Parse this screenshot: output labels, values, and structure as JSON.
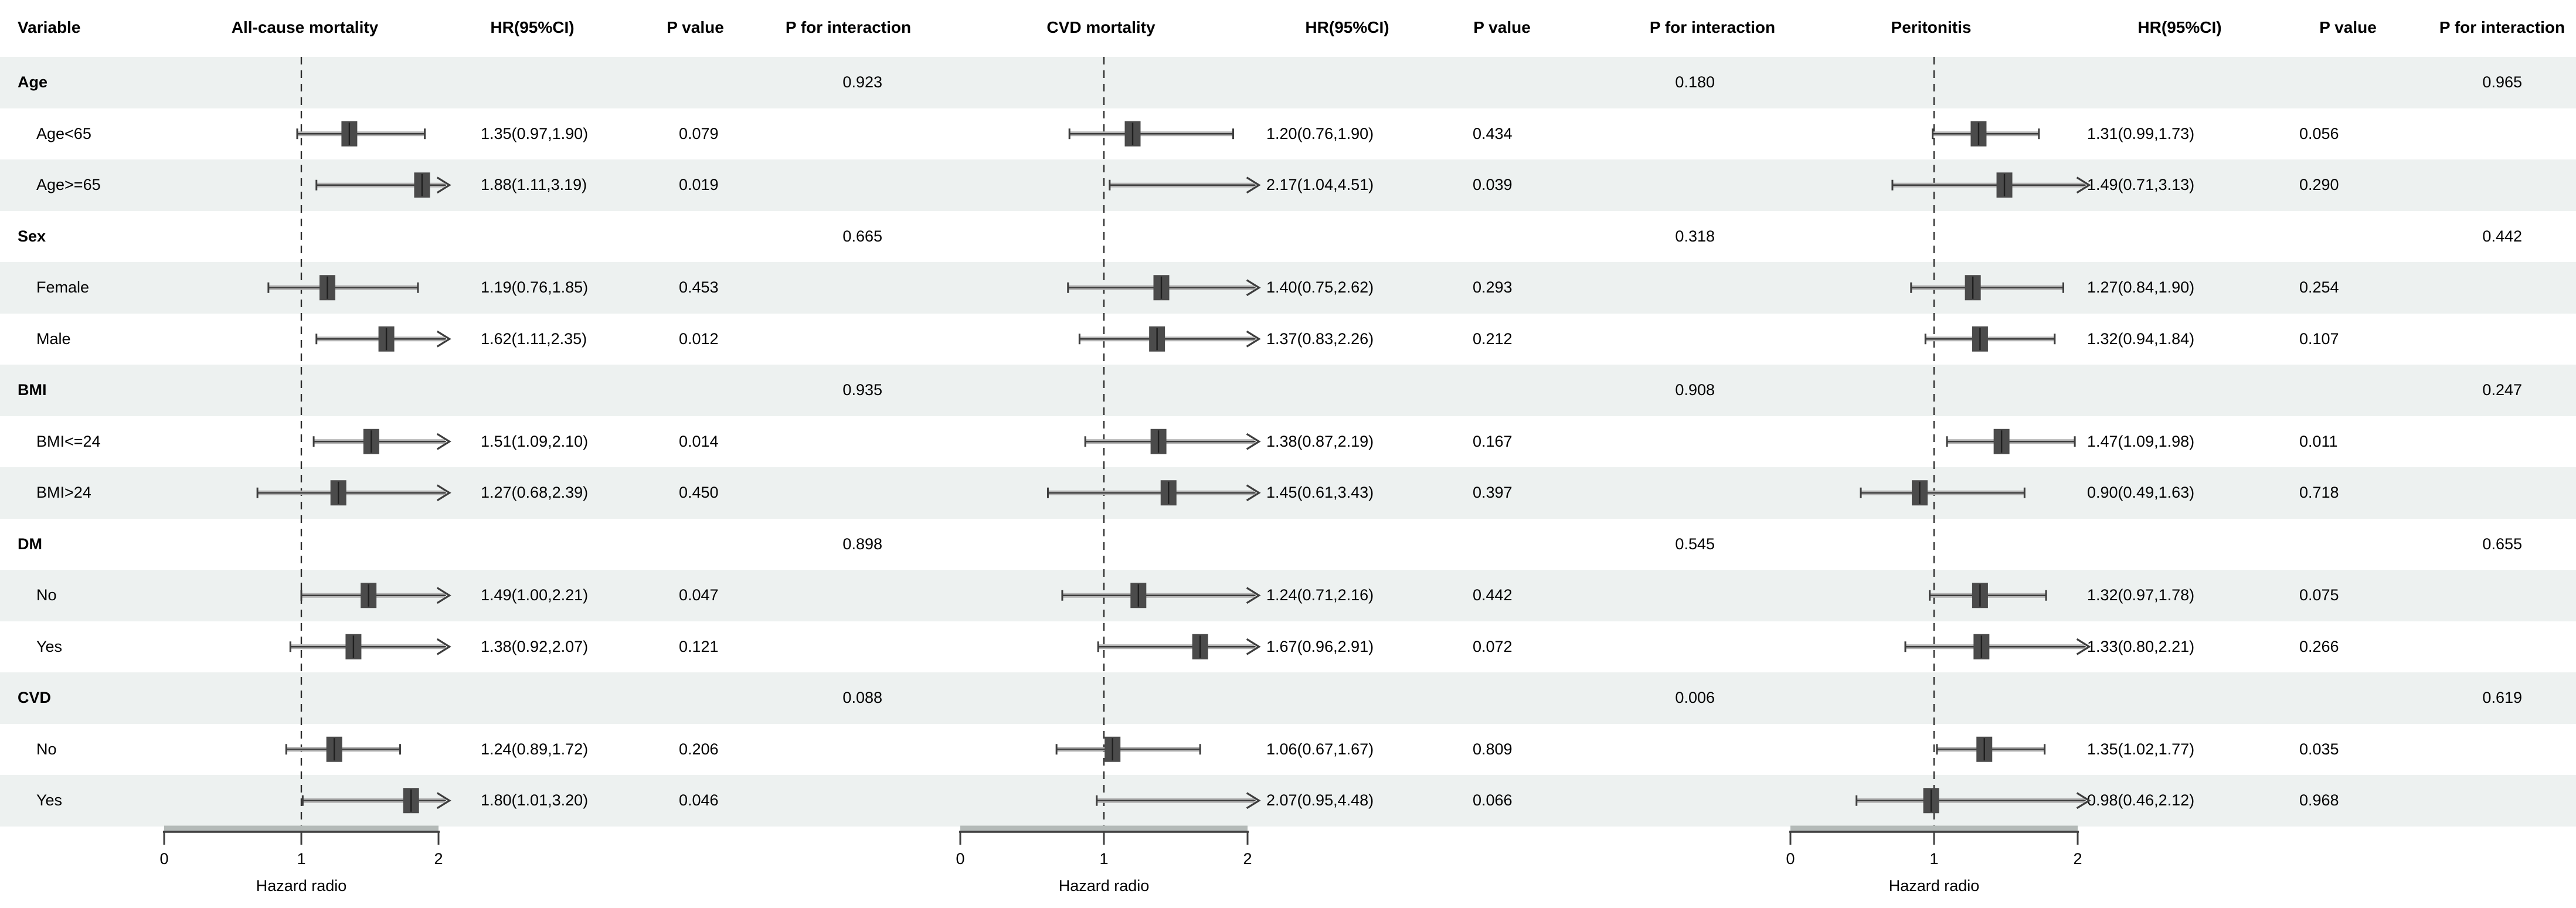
{
  "header": {
    "variable_label": "Variable",
    "panels": [
      {
        "title": "All-cause mortality",
        "hr": "HR(95%CI)",
        "p": "P value",
        "pint": "P for interaction"
      },
      {
        "title": "CVD mortality",
        "hr": "HR(95%CI)",
        "p": "P value",
        "pint": "P for interaction"
      },
      {
        "title": "Peritonitis",
        "hr": "HR(95%CI)",
        "p": "P value",
        "pint": "P for interaction"
      }
    ]
  },
  "colors": {
    "stripe": "#edf1f0",
    "marker": "#4b4b4b",
    "marker_center_line": "#1f1f1f",
    "ci_line": "#3d3d3d",
    "ci_halo": "#b4b4b4",
    "reference_dash": "#2e2e2e",
    "axis_line": "#3f3f3f",
    "axis_underlay": "#b4bab8",
    "text": "#000000"
  },
  "chart_data": {
    "type": "forest",
    "panels": [
      "All-cause mortality",
      "CVD mortality",
      "Peritonitis"
    ],
    "x_axis": {
      "label": "Hazard radio",
      "ticks": [
        "0",
        "1",
        "2"
      ],
      "range": [
        0,
        2
      ],
      "reference_line": 1
    },
    "rows": [
      {
        "kind": "group",
        "label": "Age",
        "p_interaction": [
          "0.923",
          "0.180",
          "0.965"
        ]
      },
      {
        "kind": "item",
        "label": "Age<65",
        "panels": [
          {
            "hr": 1.35,
            "lo": 0.97,
            "hi": 1.9,
            "text": "1.35(0.97,1.90)",
            "p": "0.079"
          },
          {
            "hr": 1.2,
            "lo": 0.76,
            "hi": 1.9,
            "text": "1.20(0.76,1.90)",
            "p": "0.434"
          },
          {
            "hr": 1.31,
            "lo": 0.99,
            "hi": 1.73,
            "text": "1.31(0.99,1.73)",
            "p": "0.056"
          }
        ]
      },
      {
        "kind": "item",
        "label": "Age>=65",
        "panels": [
          {
            "hr": 1.88,
            "lo": 1.11,
            "hi": 3.19,
            "text": "1.88(1.11,3.19)",
            "p": "0.019"
          },
          {
            "hr": 2.17,
            "lo": 1.04,
            "hi": 4.51,
            "text": "2.17(1.04,4.51)",
            "p": "0.039"
          },
          {
            "hr": 1.49,
            "lo": 0.71,
            "hi": 3.13,
            "text": "1.49(0.71,3.13)",
            "p": "0.290"
          }
        ]
      },
      {
        "kind": "group",
        "label": "Sex",
        "p_interaction": [
          "0.665",
          "0.318",
          "0.442"
        ]
      },
      {
        "kind": "item",
        "label": "Female",
        "panels": [
          {
            "hr": 1.19,
            "lo": 0.76,
            "hi": 1.85,
            "text": "1.19(0.76,1.85)",
            "p": "0.453"
          },
          {
            "hr": 1.4,
            "lo": 0.75,
            "hi": 2.62,
            "text": "1.40(0.75,2.62)",
            "p": "0.293"
          },
          {
            "hr": 1.27,
            "lo": 0.84,
            "hi": 1.9,
            "text": "1.27(0.84,1.90)",
            "p": "0.254"
          }
        ]
      },
      {
        "kind": "item",
        "label": "Male",
        "panels": [
          {
            "hr": 1.62,
            "lo": 1.11,
            "hi": 2.35,
            "text": "1.62(1.11,2.35)",
            "p": "0.012"
          },
          {
            "hr": 1.37,
            "lo": 0.83,
            "hi": 2.26,
            "text": "1.37(0.83,2.26)",
            "p": "0.212"
          },
          {
            "hr": 1.32,
            "lo": 0.94,
            "hi": 1.84,
            "text": "1.32(0.94,1.84)",
            "p": "0.107"
          }
        ]
      },
      {
        "kind": "group",
        "label": "BMI",
        "p_interaction": [
          "0.935",
          "0.908",
          "0.247"
        ]
      },
      {
        "kind": "item",
        "label": "BMI<=24",
        "panels": [
          {
            "hr": 1.51,
            "lo": 1.09,
            "hi": 2.1,
            "text": "1.51(1.09,2.10)",
            "p": "0.014"
          },
          {
            "hr": 1.38,
            "lo": 0.87,
            "hi": 2.19,
            "text": "1.38(0.87,2.19)",
            "p": "0.167"
          },
          {
            "hr": 1.47,
            "lo": 1.09,
            "hi": 1.98,
            "text": "1.47(1.09,1.98)",
            "p": "0.011"
          }
        ]
      },
      {
        "kind": "item",
        "label": "BMI>24",
        "panels": [
          {
            "hr": 1.27,
            "lo": 0.68,
            "hi": 2.39,
            "text": "1.27(0.68,2.39)",
            "p": "0.450"
          },
          {
            "hr": 1.45,
            "lo": 0.61,
            "hi": 3.43,
            "text": "1.45(0.61,3.43)",
            "p": "0.397"
          },
          {
            "hr": 0.9,
            "lo": 0.49,
            "hi": 1.63,
            "text": "0.90(0.49,1.63)",
            "p": "0.718"
          }
        ]
      },
      {
        "kind": "group",
        "label": "DM",
        "p_interaction": [
          "0.898",
          "0.545",
          "0.655"
        ]
      },
      {
        "kind": "item",
        "label": "No",
        "panels": [
          {
            "hr": 1.49,
            "lo": 1.0,
            "hi": 2.21,
            "text": "1.49(1.00,2.21)",
            "p": "0.047"
          },
          {
            "hr": 1.24,
            "lo": 0.71,
            "hi": 2.16,
            "text": "1.24(0.71,2.16)",
            "p": "0.442"
          },
          {
            "hr": 1.32,
            "lo": 0.97,
            "hi": 1.78,
            "text": "1.32(0.97,1.78)",
            "p": "0.075"
          }
        ]
      },
      {
        "kind": "item",
        "label": "Yes",
        "panels": [
          {
            "hr": 1.38,
            "lo": 0.92,
            "hi": 2.07,
            "text": "1.38(0.92,2.07)",
            "p": "0.121"
          },
          {
            "hr": 1.67,
            "lo": 0.96,
            "hi": 2.91,
            "text": "1.67(0.96,2.91)",
            "p": "0.072"
          },
          {
            "hr": 1.33,
            "lo": 0.8,
            "hi": 2.21,
            "text": "1.33(0.80,2.21)",
            "p": "0.266"
          }
        ]
      },
      {
        "kind": "group",
        "label": "CVD",
        "p_interaction": [
          "0.088",
          "0.006",
          "0.619"
        ]
      },
      {
        "kind": "item",
        "label": "No",
        "panels": [
          {
            "hr": 1.24,
            "lo": 0.89,
            "hi": 1.72,
            "text": "1.24(0.89,1.72)",
            "p": "0.206"
          },
          {
            "hr": 1.06,
            "lo": 0.67,
            "hi": 1.67,
            "text": "1.06(0.67,1.67)",
            "p": "0.809"
          },
          {
            "hr": 1.35,
            "lo": 1.02,
            "hi": 1.77,
            "text": "1.35(1.02,1.77)",
            "p": "0.035"
          }
        ]
      },
      {
        "kind": "item",
        "label": "Yes",
        "panels": [
          {
            "hr": 1.8,
            "lo": 1.01,
            "hi": 3.2,
            "text": "1.80(1.01,3.20)",
            "p": "0.046"
          },
          {
            "hr": 2.07,
            "lo": 0.95,
            "hi": 4.48,
            "text": "2.07(0.95,4.48)",
            "p": "0.066"
          },
          {
            "hr": 0.98,
            "lo": 0.46,
            "hi": 2.12,
            "text": "0.98(0.46,2.12)",
            "p": "0.968"
          }
        ]
      }
    ]
  }
}
